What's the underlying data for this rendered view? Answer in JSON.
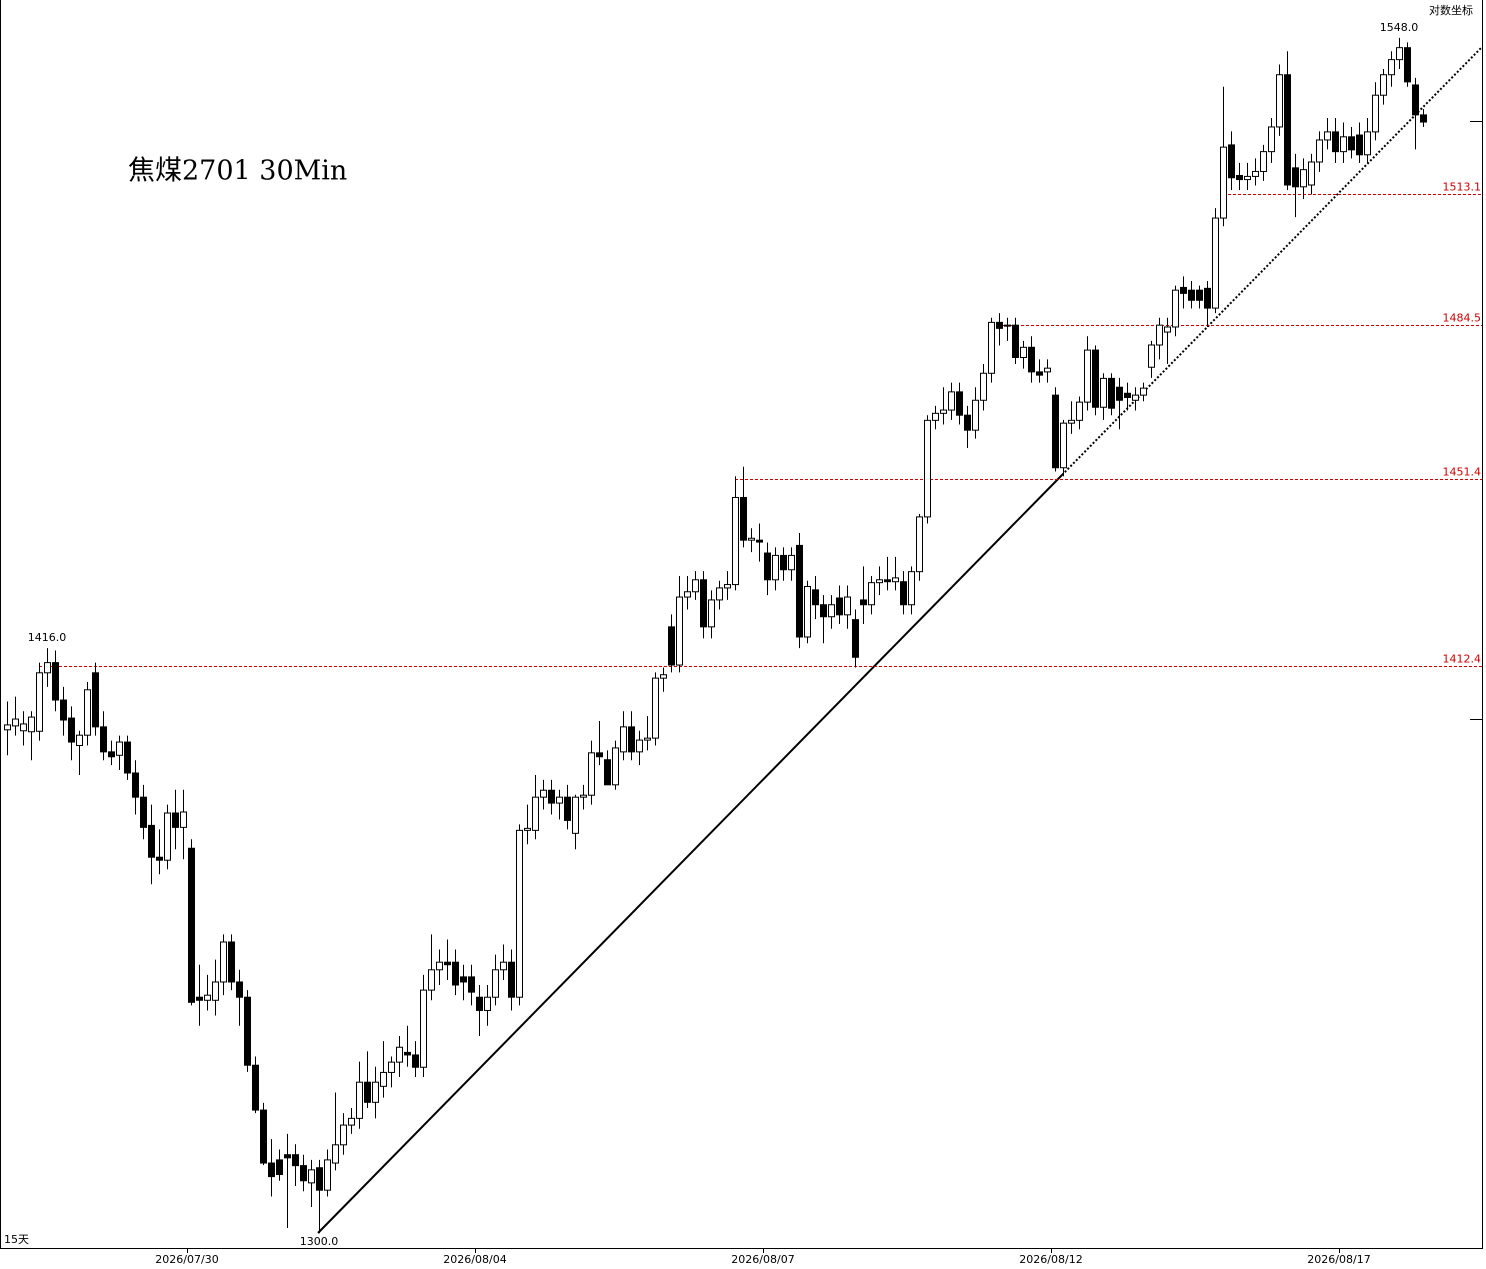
{
  "chart_data": {
    "type": "candlestick",
    "title": "焦煤2701 30Min",
    "scale_label": "对数坐标",
    "period_label": "15天",
    "log_scale": true,
    "up_color": "#ffffff",
    "down_color": "#000000",
    "level_color": "#d00000",
    "ylim": [
      1297.2,
      1556.6
    ],
    "x_labels": [
      "2026/07/30",
      "2026/08/04",
      "2026/08/07",
      "2026/08/12",
      "2026/08/17"
    ],
    "levels": [
      1412.4,
      1451.4,
      1484.5,
      1513.1
    ],
    "price_labels": [
      {
        "value": 1416,
        "label": "1416.0"
      },
      {
        "value": 1300,
        "label": "1300.0"
      },
      {
        "value": 1548,
        "label": "1548.0"
      }
    ],
    "ohlc": [
      [
        1399.2,
        1405,
        1394,
        1400.2
      ],
      [
        1400,
        1406,
        1398,
        1401.4
      ],
      [
        1399,
        1403,
        1396,
        1400.4
      ],
      [
        1398.8,
        1403,
        1393,
        1401.8
      ],
      [
        1398.9,
        1413,
        1397,
        1410.9
      ],
      [
        1410.9,
        1416,
        1408,
        1413
      ],
      [
        1413,
        1415.5,
        1403,
        1405.3
      ],
      [
        1405.3,
        1408,
        1398,
        1401.2
      ],
      [
        1401.6,
        1404,
        1393,
        1396.7
      ],
      [
        1396,
        1399,
        1390,
        1398.1
      ],
      [
        1398.1,
        1409,
        1396,
        1407.4
      ],
      [
        1410.9,
        1413,
        1398,
        1399.8
      ],
      [
        1399.8,
        1403,
        1393,
        1394.7
      ],
      [
        1394.7,
        1397,
        1392,
        1393.7
      ],
      [
        1394,
        1398,
        1391,
        1396.7
      ],
      [
        1396.7,
        1398,
        1389,
        1390.4
      ],
      [
        1390.4,
        1393,
        1382,
        1385.5
      ],
      [
        1385.5,
        1388,
        1377,
        1379.4
      ],
      [
        1379.8,
        1384,
        1368,
        1373.4
      ],
      [
        1373.4,
        1379,
        1370,
        1372.8
      ],
      [
        1372.8,
        1384,
        1371,
        1382.3
      ],
      [
        1382.3,
        1387,
        1375,
        1379.4
      ],
      [
        1379.4,
        1387,
        1373,
        1382.5
      ],
      [
        1375.2,
        1377,
        1344,
        1344.6
      ],
      [
        1345.6,
        1352,
        1340,
        1345
      ],
      [
        1345,
        1350,
        1343,
        1346
      ],
      [
        1345,
        1353,
        1342,
        1348.6
      ],
      [
        1348.6,
        1358,
        1346,
        1356.5
      ],
      [
        1356.5,
        1358,
        1347,
        1348.6
      ],
      [
        1348.6,
        1351,
        1340,
        1345.6
      ],
      [
        1345.6,
        1347,
        1331,
        1332.3
      ],
      [
        1332.3,
        1334,
        1323,
        1323.6
      ],
      [
        1323.6,
        1325,
        1313,
        1313.4
      ],
      [
        1313.4,
        1318,
        1307,
        1310.8
      ],
      [
        1314,
        1316,
        1310,
        1311.2
      ],
      [
        1315,
        1319,
        1301,
        1314.4
      ],
      [
        1315,
        1317,
        1309,
        1312.9
      ],
      [
        1312.9,
        1315,
        1308,
        1310
      ],
      [
        1309.6,
        1314,
        1305,
        1312.1
      ],
      [
        1312.5,
        1314,
        1300,
        1308.2
      ],
      [
        1308.2,
        1316,
        1307,
        1314
      ],
      [
        1313.4,
        1327,
        1312,
        1316.9
      ],
      [
        1316.9,
        1323,
        1315,
        1320.7
      ],
      [
        1320.7,
        1324,
        1319,
        1322
      ],
      [
        1322,
        1333,
        1320,
        1329
      ],
      [
        1329,
        1335,
        1324,
        1325.1
      ],
      [
        1325.1,
        1332,
        1322,
        1329
      ],
      [
        1328.2,
        1337,
        1326,
        1330.9
      ],
      [
        1330.9,
        1334,
        1328,
        1332.9
      ],
      [
        1332.9,
        1338,
        1330,
        1335.8
      ],
      [
        1334.8,
        1340,
        1332,
        1334.3
      ],
      [
        1334.3,
        1337,
        1330,
        1331.9
      ],
      [
        1331.9,
        1350,
        1330,
        1347
      ],
      [
        1347,
        1358,
        1345,
        1351
      ],
      [
        1351,
        1355,
        1348,
        1352.5
      ],
      [
        1352.5,
        1357,
        1349,
        1352
      ],
      [
        1352.5,
        1355,
        1346,
        1348
      ],
      [
        1349.6,
        1352,
        1345,
        1348.6
      ],
      [
        1349.6,
        1352,
        1344,
        1346.6
      ],
      [
        1345.6,
        1348,
        1338,
        1343
      ],
      [
        1343,
        1348,
        1340,
        1345.6
      ],
      [
        1345.6,
        1354,
        1344,
        1351
      ],
      [
        1351,
        1356,
        1349,
        1352.5
      ],
      [
        1352.5,
        1355,
        1343,
        1345.6
      ],
      [
        1345.6,
        1380,
        1344,
        1378.8
      ],
      [
        1378.8,
        1384,
        1376,
        1379.2
      ],
      [
        1378.8,
        1390,
        1377,
        1385.5
      ],
      [
        1385.5,
        1389,
        1383,
        1386.9
      ],
      [
        1386.9,
        1389,
        1382,
        1384.3
      ],
      [
        1384.3,
        1387,
        1381,
        1385.5
      ],
      [
        1385.5,
        1388,
        1379,
        1380.8
      ],
      [
        1378.2,
        1386,
        1375,
        1385.5
      ],
      [
        1385.5,
        1388,
        1383,
        1385.9
      ],
      [
        1385.9,
        1397,
        1384,
        1394.5
      ],
      [
        1394.5,
        1401,
        1392,
        1393.7
      ],
      [
        1393.1,
        1395,
        1388,
        1388
      ],
      [
        1388,
        1397,
        1387,
        1395.5
      ],
      [
        1394.7,
        1403,
        1393,
        1399.8
      ],
      [
        1399.8,
        1403,
        1393,
        1394.7
      ],
      [
        1394.7,
        1399,
        1392,
        1397.1
      ],
      [
        1397.1,
        1402,
        1395,
        1397.5
      ],
      [
        1397.5,
        1411,
        1396,
        1409.8
      ],
      [
        1409.8,
        1412,
        1407,
        1410.5
      ],
      [
        1420.4,
        1423,
        1411,
        1412.5
      ],
      [
        1412.5,
        1431,
        1411,
        1426.6
      ],
      [
        1426.6,
        1431,
        1424,
        1427.7
      ],
      [
        1427.7,
        1432,
        1426,
        1430.2
      ],
      [
        1430.2,
        1432,
        1418,
        1420.4
      ],
      [
        1420.4,
        1428,
        1418,
        1426
      ],
      [
        1426,
        1430,
        1424,
        1428.5
      ],
      [
        1428.5,
        1432,
        1426,
        1429.2
      ],
      [
        1429.2,
        1452,
        1428,
        1447.5
      ],
      [
        1447.5,
        1454,
        1437,
        1438.5
      ],
      [
        1438.5,
        1441,
        1436,
        1438.9
      ],
      [
        1438.5,
        1442,
        1434,
        1438.1
      ],
      [
        1435.8,
        1438,
        1427,
        1430.2
      ],
      [
        1430.2,
        1437,
        1428,
        1435.3
      ],
      [
        1435.3,
        1437,
        1430,
        1432.3
      ],
      [
        1432.3,
        1437,
        1430,
        1435.3
      ],
      [
        1437.4,
        1440,
        1416,
        1418.3
      ],
      [
        1418.3,
        1430,
        1417,
        1428.8
      ],
      [
        1428.1,
        1431,
        1422,
        1425
      ],
      [
        1425,
        1427,
        1417,
        1422.5
      ],
      [
        1422.5,
        1427,
        1420,
        1425
      ],
      [
        1426.4,
        1429,
        1421,
        1422.9
      ],
      [
        1422.9,
        1429,
        1420,
        1426.6
      ],
      [
        1421.9,
        1424,
        1412,
        1414.1
      ],
      [
        1426,
        1433,
        1421,
        1425
      ],
      [
        1425,
        1431,
        1423,
        1429.6
      ],
      [
        1429.6,
        1433,
        1427,
        1430.2
      ],
      [
        1430.2,
        1435,
        1428,
        1429.8
      ],
      [
        1429.8,
        1435,
        1428,
        1430.6
      ],
      [
        1429.8,
        1432,
        1423,
        1425
      ],
      [
        1425,
        1433,
        1423,
        1431.9
      ],
      [
        1431.9,
        1444,
        1430,
        1443.4
      ],
      [
        1443.4,
        1465,
        1442,
        1463.9
      ],
      [
        1463.9,
        1467,
        1462,
        1465.4
      ],
      [
        1465.4,
        1471,
        1463,
        1466.1
      ],
      [
        1466.1,
        1472,
        1464,
        1470
      ],
      [
        1470,
        1472,
        1463,
        1465
      ],
      [
        1465,
        1467,
        1458,
        1461.8
      ],
      [
        1461.8,
        1471,
        1460,
        1468.2
      ],
      [
        1468.2,
        1476,
        1466,
        1474
      ],
      [
        1474,
        1486,
        1472,
        1485
      ],
      [
        1485,
        1487,
        1480,
        1483.7
      ],
      [
        1484.2,
        1486,
        1481,
        1484.4
      ],
      [
        1484.4,
        1486,
        1476,
        1477.4
      ],
      [
        1477.4,
        1481,
        1475,
        1479.6
      ],
      [
        1479.6,
        1482,
        1472,
        1474.3
      ],
      [
        1474.3,
        1477,
        1472,
        1473.6
      ],
      [
        1474.3,
        1477,
        1472,
        1475.1
      ],
      [
        1469.3,
        1471,
        1453,
        1453.8
      ],
      [
        1453.8,
        1464,
        1452,
        1463.3
      ],
      [
        1463.3,
        1468,
        1461,
        1463.9
      ],
      [
        1463.9,
        1469,
        1462,
        1467.8
      ],
      [
        1467.8,
        1482,
        1466,
        1479
      ],
      [
        1479,
        1480,
        1465,
        1466.7
      ],
      [
        1466.7,
        1474,
        1464,
        1472.9
      ],
      [
        1472.9,
        1474,
        1465,
        1466.5
      ],
      [
        1471,
        1473,
        1462,
        1468.2
      ],
      [
        1469.7,
        1472,
        1466,
        1468.8
      ],
      [
        1468.2,
        1471,
        1466,
        1469.3
      ],
      [
        1469.3,
        1472,
        1468,
        1470.8
      ],
      [
        1475.3,
        1481,
        1473,
        1480.1
      ],
      [
        1480.1,
        1486,
        1477,
        1484.4
      ],
      [
        1482.9,
        1486,
        1476,
        1484
      ],
      [
        1484,
        1493,
        1482,
        1492
      ],
      [
        1492.6,
        1495,
        1488,
        1491.3
      ],
      [
        1492,
        1494,
        1488,
        1489.8
      ],
      [
        1492,
        1493,
        1488,
        1489.8
      ],
      [
        1492.4,
        1494,
        1484,
        1488.1
      ],
      [
        1488.1,
        1510,
        1487,
        1507.8
      ],
      [
        1507.8,
        1537,
        1506,
        1523.5
      ],
      [
        1524,
        1527,
        1514,
        1516.7
      ],
      [
        1517.2,
        1520,
        1514,
        1516.3
      ],
      [
        1516.3,
        1520,
        1514,
        1517
      ],
      [
        1517,
        1521,
        1515,
        1518.1
      ],
      [
        1518.1,
        1524,
        1516,
        1522.5
      ],
      [
        1522.5,
        1530,
        1520,
        1528
      ],
      [
        1528,
        1542,
        1526,
        1539.7
      ],
      [
        1539.7,
        1545,
        1514,
        1515.1
      ],
      [
        1518.9,
        1522,
        1508,
        1514.7
      ],
      [
        1514.7,
        1521,
        1512,
        1518.5
      ],
      [
        1515.1,
        1522,
        1513,
        1520.2
      ],
      [
        1520.2,
        1527,
        1518,
        1525.1
      ],
      [
        1525.1,
        1530,
        1523,
        1526.9
      ],
      [
        1526.9,
        1530,
        1520,
        1522.5
      ],
      [
        1522.5,
        1529,
        1520,
        1525.8
      ],
      [
        1525.8,
        1528,
        1521,
        1522.9
      ],
      [
        1526.2,
        1529,
        1520,
        1521.8
      ],
      [
        1521.8,
        1530,
        1520,
        1526.9
      ],
      [
        1526.9,
        1538,
        1525,
        1535.1
      ],
      [
        1535.1,
        1541,
        1533,
        1539.7
      ],
      [
        1539.7,
        1545,
        1537,
        1543.1
      ],
      [
        1543.1,
        1548,
        1541,
        1545.8
      ],
      [
        1545.8,
        1547,
        1537,
        1538.1
      ],
      [
        1537.4,
        1539,
        1523,
        1530.7
      ],
      [
        1530.7,
        1532,
        1528,
        1529.1
      ]
    ]
  }
}
